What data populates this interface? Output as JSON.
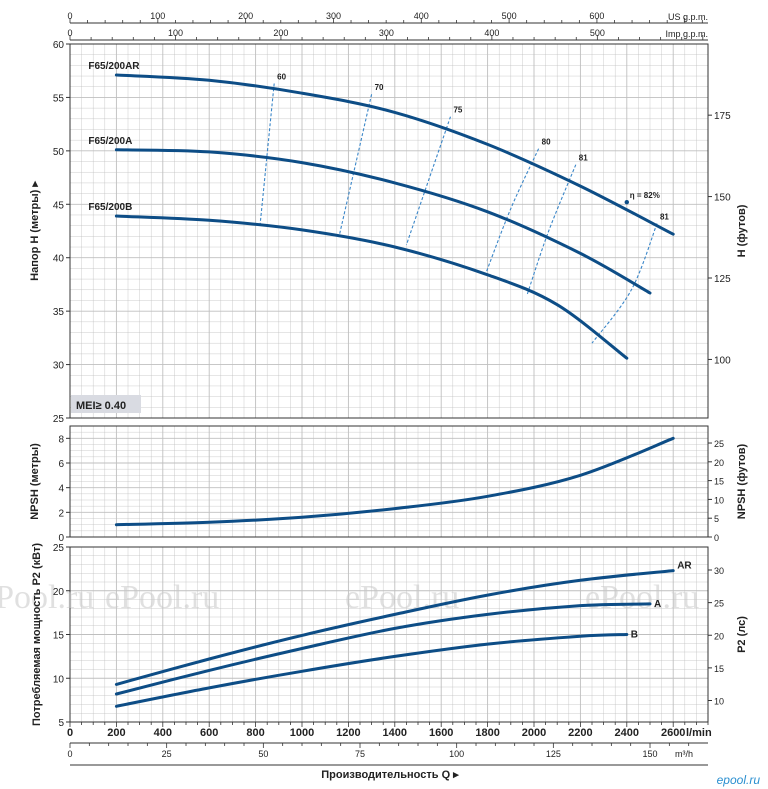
{
  "header": {
    "us_gpm_unit": "US g.p.m.",
    "imp_gpm_unit": "Imp g.p.m."
  },
  "top_axis": {
    "us_gpm_ticks": [
      0,
      100,
      200,
      300,
      400,
      500,
      600
    ],
    "imp_gpm_ticks": [
      0,
      100,
      200,
      300,
      400,
      500
    ]
  },
  "bottom_axis": {
    "lmin_unit": "l/min",
    "lmin_ticks": [
      0,
      200,
      400,
      600,
      800,
      1000,
      1200,
      1400,
      1600,
      1800,
      2000,
      2200,
      2400,
      2600
    ],
    "m3h_unit": "m³/h",
    "m3h_ticks": [
      0,
      25,
      50,
      75,
      100,
      125,
      150
    ],
    "title": "Производительность Q ▸"
  },
  "badge": {
    "text": "MEI≥ 0.40"
  },
  "watermark": {
    "text": "ePool.ru"
  },
  "corner_logo": {
    "text": "epool.ru"
  },
  "colors": {
    "curve": "#0d4d86",
    "efficiency": "#3a86c8",
    "grid": "#bfbfbf",
    "badge_bg": "#d9dbe2"
  },
  "chart_data": [
    {
      "type": "line",
      "name": "head",
      "ylabel": "Напор H (метры) ▸",
      "y2label": "H (футов)",
      "xlim": [
        0,
        2750
      ],
      "ylim": [
        25,
        60
      ],
      "yticks": [
        25,
        30,
        35,
        40,
        45,
        50,
        55,
        60
      ],
      "y2ticks": [
        100,
        125,
        150,
        175
      ],
      "grid": true,
      "series": [
        {
          "name": "F65/200AR",
          "x": [
            200,
            600,
            1000,
            1400,
            1800,
            2200,
            2600
          ],
          "y": [
            57.1,
            56.6,
            55.4,
            53.6,
            50.6,
            46.7,
            42.2
          ]
        },
        {
          "name": "F65/200A",
          "x": [
            200,
            600,
            1000,
            1400,
            1800,
            2200,
            2500
          ],
          "y": [
            50.1,
            49.9,
            48.9,
            47.0,
            44.3,
            40.4,
            36.7
          ]
        },
        {
          "name": "F65/200B",
          "x": [
            200,
            600,
            1000,
            1400,
            1800,
            2100,
            2400
          ],
          "y": [
            43.9,
            43.5,
            42.6,
            41.0,
            38.4,
            35.6,
            30.6
          ]
        }
      ],
      "efficiency": [
        {
          "label": "60",
          "x": [
            880,
            820
          ],
          "y": [
            56.3,
            43.2
          ]
        },
        {
          "label": "70",
          "x": [
            1300,
            1160
          ],
          "y": [
            55.3,
            42.0
          ]
        },
        {
          "label": "75",
          "x": [
            1640,
            1450
          ],
          "y": [
            53.2,
            41.2
          ]
        },
        {
          "label": "80",
          "x": [
            2020,
            1900,
            1790
          ],
          "y": [
            50.2,
            44.6,
            38.4
          ]
        },
        {
          "label": "81",
          "x": [
            2180,
            2060,
            1970
          ],
          "y": [
            48.7,
            42.3,
            36.5
          ]
        },
        {
          "label": "η = 82%",
          "x": [
            2400
          ],
          "y": [
            45.2
          ]
        },
        {
          "label": "81",
          "x": [
            2530,
            2420,
            2250
          ],
          "y": [
            43.2,
            37.0,
            32.0
          ]
        }
      ]
    },
    {
      "type": "line",
      "name": "npsh",
      "ylabel": "NPSH (метры)",
      "y2label": "NPSH (футов)",
      "xlim": [
        0,
        2750
      ],
      "ylim": [
        0,
        9
      ],
      "yticks": [
        0,
        2,
        4,
        6,
        8
      ],
      "y2ticks": [
        0,
        5,
        10,
        15,
        20,
        25
      ],
      "grid": true,
      "series": [
        {
          "name": "NPSH",
          "x": [
            200,
            600,
            1000,
            1400,
            1800,
            2200,
            2600
          ],
          "y": [
            1.0,
            1.2,
            1.6,
            2.3,
            3.3,
            5.0,
            8.0
          ]
        }
      ]
    },
    {
      "type": "line",
      "name": "power",
      "ylabel": "Потребляемая мощность P2 (кВт)",
      "y2label": "P2 (лс)",
      "xlim": [
        0,
        2750
      ],
      "ylim": [
        5,
        25
      ],
      "yticks": [
        5,
        10,
        15,
        20,
        25
      ],
      "y2ticks": [
        10,
        15,
        20,
        25,
        30
      ],
      "grid": true,
      "series": [
        {
          "name": "AR",
          "x": [
            200,
            600,
            1000,
            1400,
            1800,
            2200,
            2600
          ],
          "y": [
            9.3,
            12.2,
            14.9,
            17.3,
            19.5,
            21.2,
            22.3
          ]
        },
        {
          "name": "A",
          "x": [
            200,
            600,
            1000,
            1400,
            1800,
            2200,
            2500
          ],
          "y": [
            8.2,
            10.9,
            13.4,
            15.7,
            17.3,
            18.3,
            18.5
          ]
        },
        {
          "name": "B",
          "x": [
            200,
            600,
            1000,
            1400,
            1800,
            2200,
            2400
          ],
          "y": [
            6.8,
            8.9,
            10.8,
            12.5,
            13.9,
            14.8,
            15.0
          ]
        }
      ]
    }
  ]
}
